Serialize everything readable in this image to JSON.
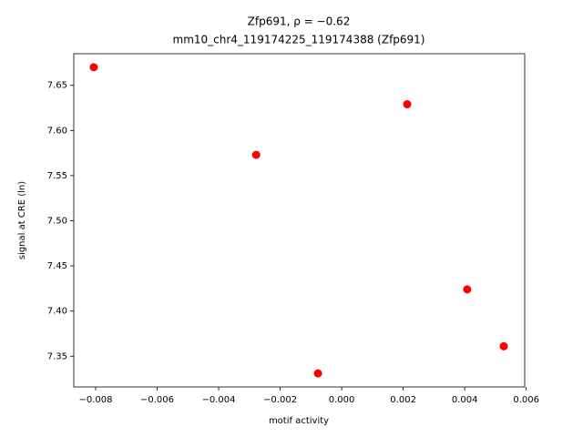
{
  "chart_data": {
    "type": "scatter",
    "title": "Zfp691, ρ = −0.62",
    "subtitle": "mm10_chr4_119174225_119174388 (Zfp691)",
    "x_label": "motif activity",
    "y_label": "signal at CRE (ln)",
    "x": [
      -0.00806,
      -0.00278,
      -0.00077,
      0.00213,
      0.00408,
      0.00527
    ],
    "values": [
      7.67,
      7.573,
      7.331,
      7.629,
      7.424,
      7.361
    ],
    "color": "#ff0000",
    "xlim": [
      -0.00871,
      0.00595
    ],
    "ylim": [
      7.316,
      7.685
    ],
    "xticks": [
      {
        "value": -0.008,
        "label": "−0.008"
      },
      {
        "value": -0.006,
        "label": "−0.006"
      },
      {
        "value": -0.004,
        "label": "−0.004"
      },
      {
        "value": -0.002,
        "label": "−0.002"
      },
      {
        "value": 0,
        "label": "0.000"
      },
      {
        "value": 0.002,
        "label": "0.002"
      },
      {
        "value": 0.004,
        "label": "0.004"
      },
      {
        "value": 0.006,
        "label": "0.006"
      }
    ],
    "yticks": [
      {
        "value": 7.35,
        "label": "7.35"
      },
      {
        "value": 7.4,
        "label": "7.40"
      },
      {
        "value": 7.45,
        "label": "7.45"
      },
      {
        "value": 7.5,
        "label": "7.50"
      },
      {
        "value": 7.55,
        "label": "7.55"
      },
      {
        "value": 7.6,
        "label": "7.60"
      },
      {
        "value": 7.65,
        "label": "7.65"
      }
    ],
    "grid": false
  }
}
